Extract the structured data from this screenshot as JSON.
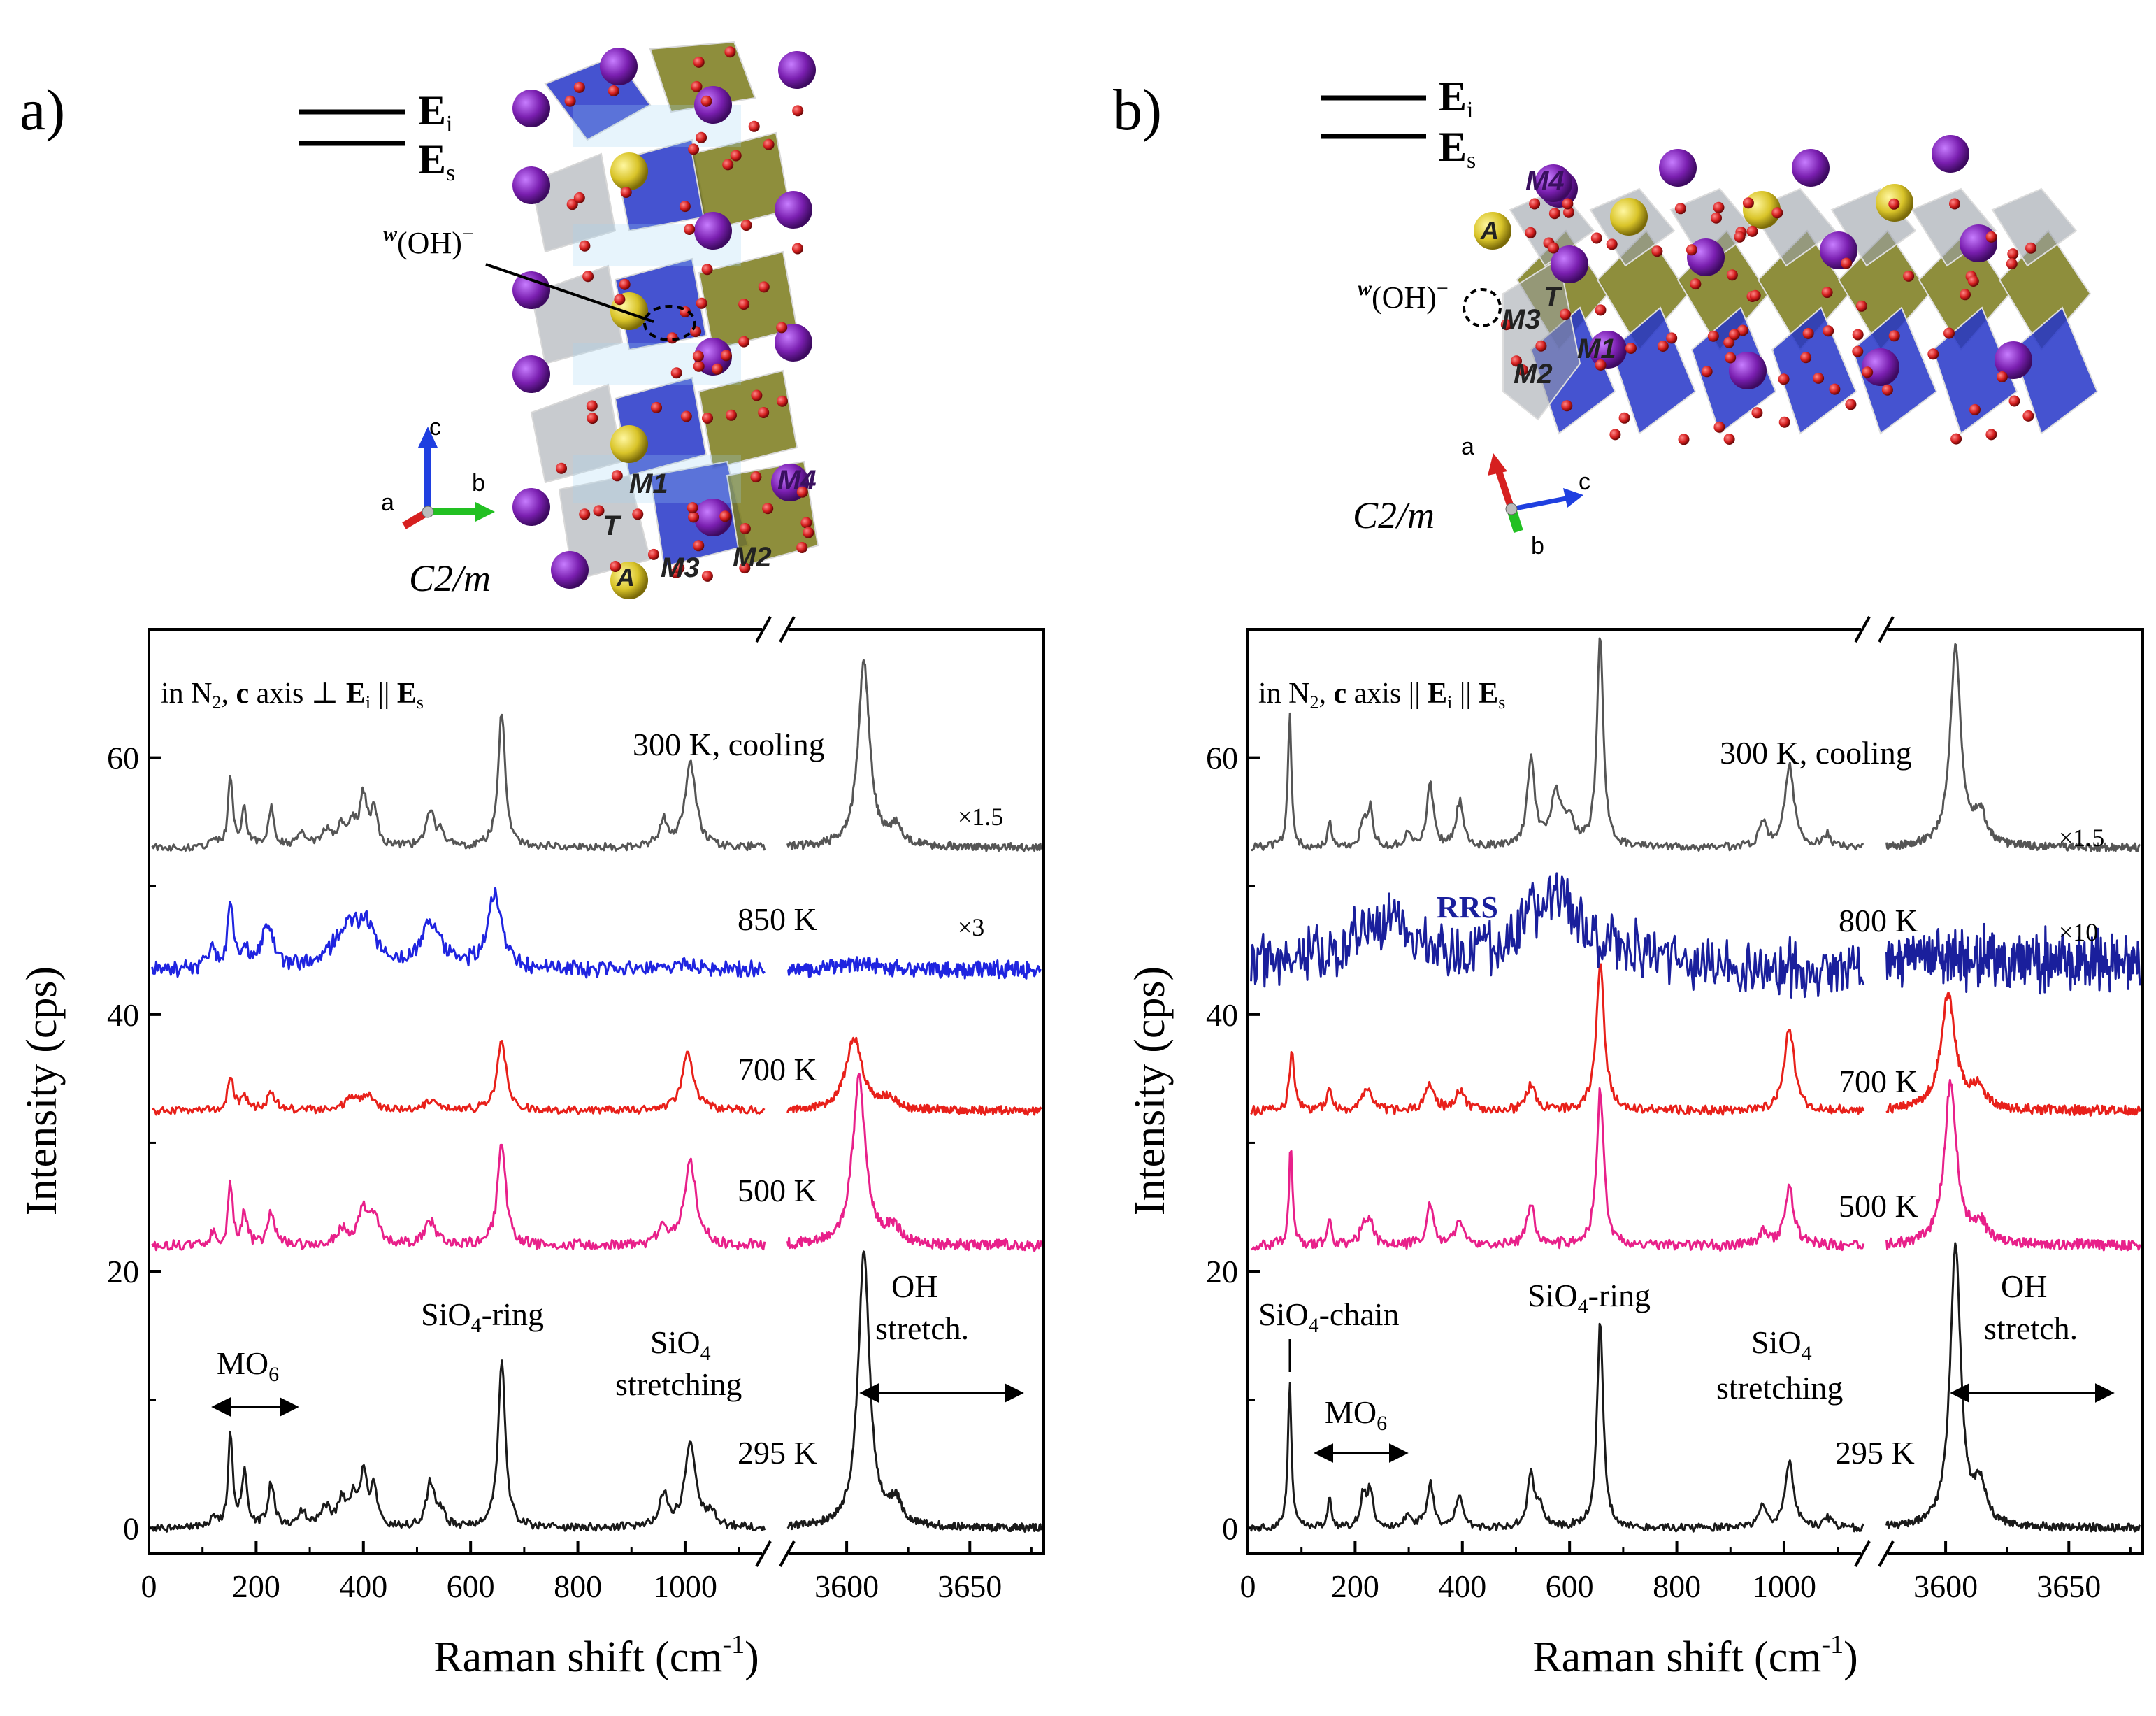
{
  "figure": {
    "colors": {
      "black": "#1a1a1a",
      "gray": "#555555",
      "blue": "#1f24e0",
      "navy": "#1a1f9c",
      "red": "#e8201a",
      "pink": "#e8208a",
      "purple": "#7a1fb0",
      "gold": "#d9c429",
      "tetra": "#2435c8",
      "octa": "#7a7a1a",
      "oxygen": "#d62020"
    }
  },
  "panels": [
    {
      "label": "a)",
      "legend": {
        "ei": "E",
        "ei_sub": "i",
        "es": "E",
        "es_sub": "s"
      },
      "crystal": {
        "space_group": "C2/m",
        "oh_label": "(OH)",
        "oh_sup_w": "w",
        "oh_sup_minus": "−",
        "axes": {
          "a": "a",
          "b": "b",
          "c": "c"
        },
        "sites": [
          "M1",
          "M4",
          "T",
          "M2",
          "M3",
          "A"
        ]
      },
      "chart_data": {
        "type": "line",
        "title": "in N2, c axis ⊥ Ei || Es",
        "title_parts": {
          "pre": "in N",
          "n2sub": "2",
          "comma": ", ",
          "c": "c",
          "mid": " axis ⊥ ",
          "e1": "E",
          "e1sub": "i",
          "par": " || ",
          "e2": "E",
          "e2sub": "s"
        },
        "xlabel": "Raman shift (cm⁻¹)",
        "xlabel_parts": {
          "main": "Raman shift (cm",
          "sup": "-1",
          "close": ")"
        },
        "ylabel": "Intensity (cps)",
        "ylim": [
          -2,
          70
        ],
        "yticks": [
          0,
          20,
          40,
          60
        ],
        "xlim_left": [
          0,
          1150
        ],
        "xticks_left": [
          0,
          200,
          400,
          600,
          800,
          1000
        ],
        "xlim_right": [
          3575,
          3680
        ],
        "xticks_right": [
          3600,
          3650
        ],
        "series": [
          {
            "name": "295 K",
            "color": "black",
            "offset": 0,
            "noise": 0.3,
            "bandwidth": 1.0,
            "left_peaks": [
              [
                120,
                1.0,
                6
              ],
              [
                152,
                7.5,
                5
              ],
              [
                178,
                4.2,
                6
              ],
              [
                228,
                3.5,
                7
              ],
              [
                285,
                1.2,
                10
              ],
              [
                330,
                1.5,
                10
              ],
              [
                360,
                2.0,
                9
              ],
              [
                380,
                2.0,
                8
              ],
              [
                400,
                4.0,
                8
              ],
              [
                420,
                3.0,
                7
              ],
              [
                525,
                3.5,
                9
              ],
              [
                545,
                1.0,
                8
              ],
              [
                658,
                13.0,
                8
              ],
              [
                960,
                2.5,
                10
              ],
              [
                1010,
                6.8,
                12
              ],
              [
                1050,
                1.0,
                10
              ]
            ],
            "right_peaks": [
              [
                3607,
                21.5,
                2.8
              ],
              [
                3620,
                1.8,
                2.8
              ]
            ]
          },
          {
            "name": "500 K",
            "color": "pink",
            "offset": 22,
            "noise": 0.4,
            "bandwidth": 1.3,
            "left_peaks": [
              [
                120,
                0.8,
                7
              ],
              [
                152,
                4.8,
                5
              ],
              [
                178,
                2.5,
                6
              ],
              [
                228,
                2.5,
                8
              ],
              [
                360,
                1.2,
                12
              ],
              [
                400,
                2.6,
                12
              ],
              [
                420,
                2.0,
                10
              ],
              [
                525,
                1.8,
                12
              ],
              [
                658,
                8.2,
                9
              ],
              [
                960,
                1.2,
                12
              ],
              [
                1010,
                6.5,
                13
              ]
            ],
            "right_peaks": [
              [
                3605,
                13.0,
                3.2
              ],
              [
                3619,
                1.2,
                3.5
              ]
            ]
          },
          {
            "name": "700 K",
            "color": "red",
            "offset": 32.5,
            "noise": 0.3,
            "bandwidth": 1.6,
            "left_peaks": [
              [
                152,
                2.8,
                6
              ],
              [
                178,
                1.0,
                8
              ],
              [
                228,
                1.3,
                10
              ],
              [
                380,
                0.9,
                18
              ],
              [
                410,
                1.0,
                12
              ],
              [
                525,
                0.8,
                12
              ],
              [
                658,
                5.5,
                10
              ],
              [
                1005,
                4.6,
                13
              ]
            ],
            "right_peaks": [
              [
                3603,
                5.6,
                4.0
              ],
              [
                3617,
                0.8,
                4.0
              ]
            ]
          },
          {
            "name": "850 K",
            "color": "blue",
            "offset": 43.5,
            "noise": 0.55,
            "bandwidth": 2.6,
            "left_peaks": [
              [
                118,
                1.5,
                8
              ],
              [
                152,
                5.2,
                6
              ],
              [
                178,
                1.5,
                8
              ],
              [
                222,
                3.5,
                12
              ],
              [
                370,
                3.2,
                30
              ],
              [
                405,
                2.6,
                18
              ],
              [
                525,
                3.5,
                22
              ],
              [
                645,
                5.8,
                16
              ],
              [
                1000,
                0.5,
                18
              ]
            ],
            "right_peaks": [
              [
                3605,
                0.5,
                8
              ]
            ]
          },
          {
            "name": "300 K, cooling",
            "color": "gray",
            "offset": 53,
            "noise": 0.3,
            "bandwidth": 1.0,
            "left_peaks": [
              [
                120,
                0.8,
                6
              ],
              [
                152,
                5.5,
                5
              ],
              [
                178,
                2.8,
                6
              ],
              [
                228,
                3.0,
                7
              ],
              [
                285,
                1.0,
                10
              ],
              [
                330,
                1.2,
                10
              ],
              [
                360,
                1.6,
                9
              ],
              [
                380,
                1.6,
                8
              ],
              [
                400,
                3.8,
                8
              ],
              [
                420,
                3.0,
                7
              ],
              [
                525,
                2.8,
                9
              ],
              [
                545,
                1.0,
                8
              ],
              [
                658,
                10.5,
                8
              ],
              [
                960,
                2.0,
                10
              ],
              [
                1010,
                6.5,
                12
              ]
            ],
            "right_peaks": [
              [
                3607,
                14.5,
                2.8
              ],
              [
                3620,
                1.5,
                2.8
              ]
            ]
          }
        ],
        "curve_labels": [
          {
            "text": "300 K, cooling",
            "series": "300 K, cooling"
          },
          {
            "text": "850 K",
            "series": "850 K"
          },
          {
            "text": "700 K",
            "series": "700 K"
          },
          {
            "text": "500 K",
            "series": "500 K"
          },
          {
            "text": "295 K",
            "series": "295 K"
          }
        ],
        "scale_labels": [
          {
            "text": "×1.5"
          },
          {
            "text": "×3"
          }
        ],
        "annotations": {
          "mo6": "MO",
          "mo6_sub": "6",
          "ring": "SiO",
          "ring_sub": "4",
          "ring_rest": "-ring",
          "stretch1": "SiO",
          "stretch1_sub": "4",
          "stretch2": "stretching",
          "oh1": "OH",
          "oh2": "stretch."
        }
      }
    },
    {
      "label": "b)",
      "legend": {
        "ei": "E",
        "ei_sub": "i",
        "es": "E",
        "es_sub": "s"
      },
      "crystal": {
        "space_group": "C2/m",
        "oh_label": "(OH)",
        "oh_sup_w": "w",
        "oh_sup_minus": "−",
        "axes": {
          "a": "a",
          "b": "b",
          "c": "c"
        },
        "sites": [
          "M4",
          "A",
          "T",
          "M3",
          "M1",
          "M2"
        ]
      },
      "chart_data": {
        "type": "line",
        "title": "in N2, c axis || Ei || Es",
        "title_parts": {
          "pre": "in N",
          "n2sub": "2",
          "comma": ", ",
          "c": "c",
          "mid": " axis || ",
          "e1": "E",
          "e1sub": "i",
          "par": " || ",
          "e2": "E",
          "e2sub": "s"
        },
        "xlabel": "Raman shift (cm⁻¹)",
        "xlabel_parts": {
          "main": "Raman shift (cm",
          "sup": "-1",
          "close": ")"
        },
        "ylabel": "Intensity (cps)",
        "ylim": [
          -2,
          70
        ],
        "yticks": [
          0,
          20,
          40,
          60
        ],
        "xlim_left": [
          0,
          1150
        ],
        "xticks_left": [
          0,
          200,
          400,
          600,
          800,
          1000
        ],
        "xlim_right": [
          3575,
          3680
        ],
        "xticks_right": [
          3600,
          3650
        ],
        "series": [
          {
            "name": "295 K",
            "color": "black",
            "offset": 0,
            "noise": 0.3,
            "bandwidth": 1.0,
            "left_peaks": [
              [
                78,
                11.5,
                4
              ],
              [
                152,
                2.5,
                4
              ],
              [
                215,
                2.5,
                6
              ],
              [
                228,
                3.0,
                6
              ],
              [
                300,
                1.0,
                8
              ],
              [
                340,
                3.5,
                7
              ],
              [
                395,
                2.5,
                8
              ],
              [
                528,
                4.0,
                8
              ],
              [
                545,
                1.5,
                8
              ],
              [
                657,
                16.0,
                7
              ],
              [
                960,
                1.5,
                8
              ],
              [
                1010,
                5.0,
                10
              ],
              [
                1080,
                0.8,
                8
              ]
            ],
            "right_peaks": [
              [
                3604,
                22.0,
                2.6
              ],
              [
                3614,
                3.0,
                2.8
              ]
            ]
          },
          {
            "name": "500 K",
            "color": "pink",
            "offset": 22,
            "noise": 0.4,
            "bandwidth": 1.3,
            "left_peaks": [
              [
                80,
                8.0,
                4
              ],
              [
                152,
                2.0,
                5
              ],
              [
                215,
                1.5,
                7
              ],
              [
                228,
                1.8,
                7
              ],
              [
                340,
                3.0,
                8
              ],
              [
                395,
                2.0,
                9
              ],
              [
                528,
                3.0,
                9
              ],
              [
                657,
                12.0,
                8
              ],
              [
                960,
                1.0,
                9
              ],
              [
                1010,
                4.5,
                10
              ]
            ],
            "right_peaks": [
              [
                3602,
                12.5,
                3.0
              ],
              [
                3614,
                1.5,
                3.5
              ]
            ]
          },
          {
            "name": "700 K",
            "color": "red",
            "offset": 32.5,
            "noise": 0.35,
            "bandwidth": 1.6,
            "left_peaks": [
              [
                82,
                5.0,
                5
              ],
              [
                152,
                1.5,
                6
              ],
              [
                215,
                1.0,
                8
              ],
              [
                228,
                1.2,
                8
              ],
              [
                340,
                2.0,
                10
              ],
              [
                395,
                1.5,
                10
              ],
              [
                528,
                2.0,
                10
              ],
              [
                657,
                11.5,
                9
              ],
              [
                1010,
                6.5,
                11
              ]
            ],
            "right_peaks": [
              [
                3601,
                9.0,
                3.5
              ],
              [
                3613,
                1.5,
                4.0
              ]
            ]
          },
          {
            "name": "800 K",
            "color": "navy",
            "offset": 44.5,
            "noise": 1.9,
            "bandwidth": 3.6,
            "slope": -1.5,
            "left_peaks": [
              [
                215,
                2.0,
                30
              ],
              [
                272,
                3.0,
                24
              ],
              [
                570,
                5.5,
                70
              ],
              [
                760,
                0.8,
                60
              ]
            ],
            "right_peaks": []
          },
          {
            "name": "300 K, cooling",
            "color": "gray",
            "offset": 53,
            "noise": 0.3,
            "bandwidth": 1.0,
            "left_peaks": [
              [
                78,
                10.5,
                4
              ],
              [
                152,
                2.0,
                4
              ],
              [
                215,
                2.0,
                6
              ],
              [
                228,
                3.0,
                6
              ],
              [
                300,
                1.0,
                8
              ],
              [
                340,
                5.0,
                7
              ],
              [
                395,
                3.5,
                8
              ],
              [
                528,
                7.0,
                8
              ],
              [
                575,
                4.0,
                12
              ],
              [
                600,
                2.0,
                10
              ],
              [
                657,
                16.5,
                7
              ],
              [
                960,
                2.0,
                8
              ],
              [
                1010,
                6.5,
                10
              ],
              [
                1080,
                1.0,
                8
              ]
            ],
            "right_peaks": [
              [
                3604,
                15.5,
                2.6
              ],
              [
                3614,
                2.5,
                2.8
              ]
            ]
          }
        ],
        "curve_labels": [
          {
            "text": "300 K, cooling",
            "series": "300 K, cooling"
          },
          {
            "text": "800 K",
            "series": "800 K"
          },
          {
            "text": "700 K",
            "series": "700 K"
          },
          {
            "text": "500 K",
            "series": "500 K"
          },
          {
            "text": "295 K",
            "series": "295 K"
          }
        ],
        "scale_labels": [
          {
            "text": "×1.5"
          },
          {
            "text": "×10"
          }
        ],
        "rrs_label": "RRS",
        "annotations": {
          "chain": "SiO",
          "chain_sub": "4",
          "chain_rest": "-chain",
          "mo6": "MO",
          "mo6_sub": "6",
          "ring": "SiO",
          "ring_sub": "4",
          "ring_rest": "-ring",
          "stretch1": "SiO",
          "stretch1_sub": "4",
          "stretch2": "stretching",
          "oh1": "OH",
          "oh2": "stretch."
        }
      }
    }
  ]
}
